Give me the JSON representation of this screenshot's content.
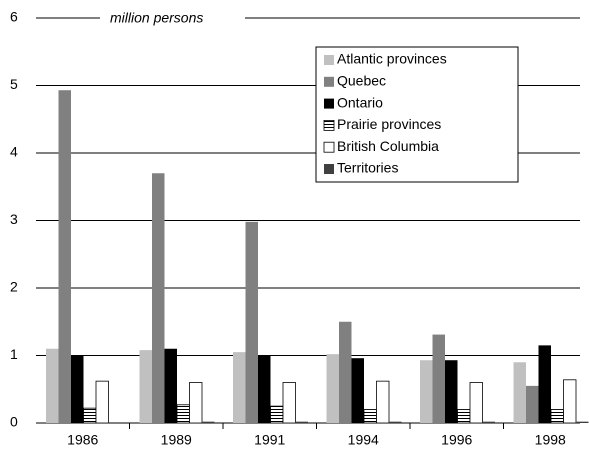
{
  "chart_data": {
    "type": "bar",
    "subtitle": "million persons",
    "categories": [
      "1986",
      "1989",
      "1991",
      "1994",
      "1996",
      "1998"
    ],
    "series": [
      {
        "name": "Atlantic provinces",
        "color": "#c0c0c0",
        "values": [
          1.1,
          1.08,
          1.05,
          1.02,
          0.93,
          0.9
        ]
      },
      {
        "name": "Quebec",
        "color": "#808080",
        "values": [
          4.93,
          3.7,
          2.98,
          1.5,
          1.31,
          0.55
        ]
      },
      {
        "name": "Ontario",
        "color": "#000000",
        "values": [
          1.0,
          1.1,
          1.0,
          0.96,
          0.93,
          1.15
        ]
      },
      {
        "name": "Prairie provinces",
        "color": "stripes",
        "values": [
          0.22,
          0.27,
          0.25,
          0.2,
          0.2,
          0.2
        ]
      },
      {
        "name": "British Columbia",
        "color": "#ffffff",
        "values": [
          0.62,
          0.6,
          0.6,
          0.62,
          0.6,
          0.64
        ]
      },
      {
        "name": "Territories",
        "color": "#404040",
        "values": [
          0.01,
          0.02,
          0.02,
          0.02,
          0.02,
          0.02
        ]
      }
    ],
    "ylim": [
      0,
      6
    ],
    "yticks": [
      0,
      1,
      2,
      3,
      4,
      5,
      6
    ],
    "grid": true,
    "legend": "upper right"
  }
}
